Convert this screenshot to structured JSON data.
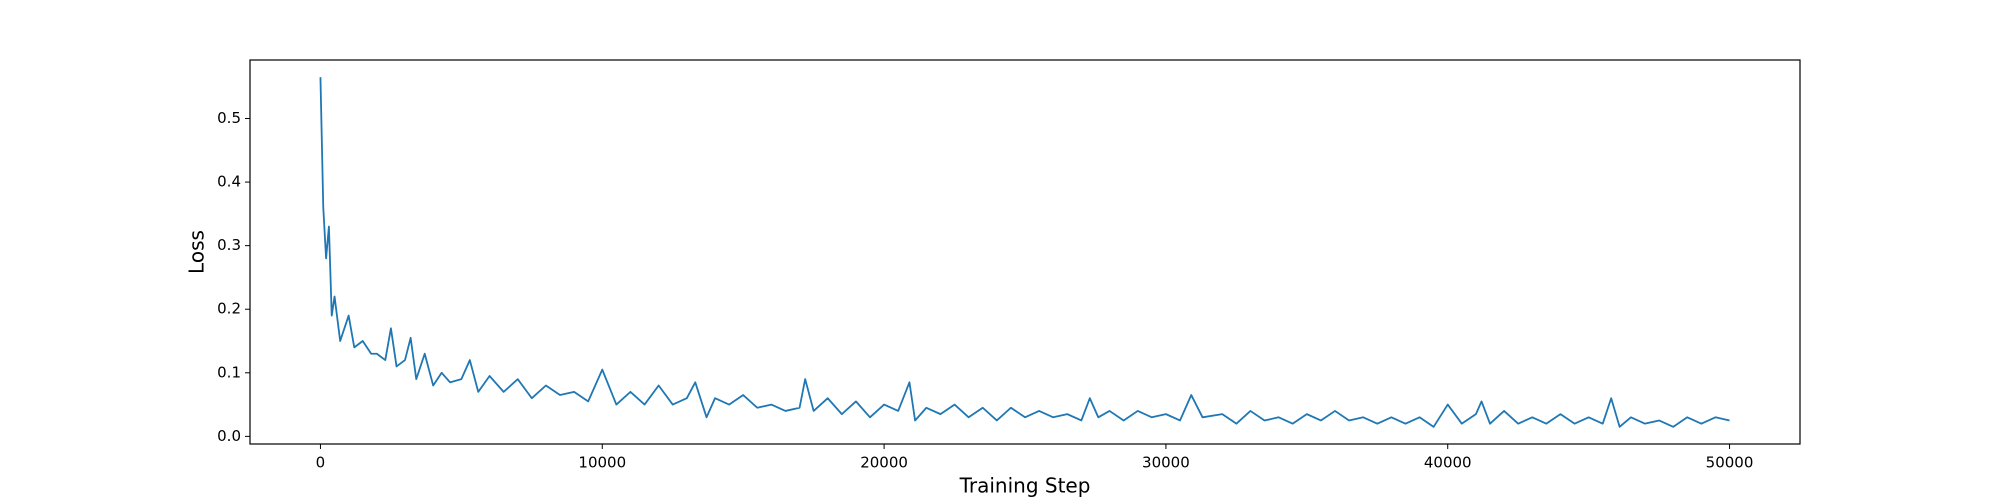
{
  "chart_data": {
    "type": "line",
    "x_label": "Training Step",
    "y_label": "Loss",
    "x": [
      0,
      100,
      200,
      300,
      400,
      500,
      700,
      1000,
      1200,
      1500,
      1800,
      2000,
      2300,
      2500,
      2700,
      3000,
      3200,
      3400,
      3700,
      4000,
      4300,
      4600,
      5000,
      5300,
      5600,
      6000,
      6500,
      7000,
      7500,
      8000,
      8500,
      9000,
      9500,
      10000,
      10500,
      11000,
      11500,
      12000,
      12500,
      13000,
      13300,
      13700,
      14000,
      14500,
      15000,
      15500,
      16000,
      16500,
      17000,
      17200,
      17500,
      18000,
      18500,
      19000,
      19500,
      20000,
      20500,
      20900,
      21100,
      21500,
      22000,
      22500,
      23000,
      23500,
      24000,
      24500,
      25000,
      25500,
      26000,
      26500,
      27000,
      27300,
      27600,
      28000,
      28500,
      29000,
      29500,
      30000,
      30500,
      30900,
      31300,
      32000,
      32500,
      33000,
      33500,
      34000,
      34500,
      35000,
      35500,
      36000,
      36500,
      37000,
      37500,
      38000,
      38500,
      39000,
      39500,
      40000,
      40500,
      41000,
      41200,
      41500,
      42000,
      42500,
      43000,
      43500,
      44000,
      44500,
      45000,
      45500,
      45800,
      46100,
      46500,
      47000,
      47500,
      48000,
      48500,
      49000,
      49500,
      50000
    ],
    "series": [
      {
        "color": "#1f77b4",
        "values": [
          0.565,
          0.36,
          0.28,
          0.33,
          0.19,
          0.22,
          0.15,
          0.19,
          0.14,
          0.15,
          0.13,
          0.13,
          0.12,
          0.17,
          0.11,
          0.12,
          0.155,
          0.09,
          0.13,
          0.08,
          0.1,
          0.085,
          0.09,
          0.12,
          0.07,
          0.095,
          0.07,
          0.09,
          0.06,
          0.08,
          0.065,
          0.07,
          0.055,
          0.105,
          0.05,
          0.07,
          0.05,
          0.08,
          0.05,
          0.06,
          0.085,
          0.03,
          0.06,
          0.05,
          0.065,
          0.045,
          0.05,
          0.04,
          0.045,
          0.09,
          0.04,
          0.06,
          0.035,
          0.055,
          0.03,
          0.05,
          0.04,
          0.085,
          0.025,
          0.045,
          0.035,
          0.05,
          0.03,
          0.045,
          0.025,
          0.045,
          0.03,
          0.04,
          0.03,
          0.035,
          0.025,
          0.06,
          0.03,
          0.04,
          0.025,
          0.04,
          0.03,
          0.035,
          0.025,
          0.065,
          0.03,
          0.035,
          0.02,
          0.04,
          0.025,
          0.03,
          0.02,
          0.035,
          0.025,
          0.04,
          0.025,
          0.03,
          0.02,
          0.03,
          0.02,
          0.03,
          0.015,
          0.05,
          0.02,
          0.035,
          0.055,
          0.02,
          0.04,
          0.02,
          0.03,
          0.02,
          0.035,
          0.02,
          0.03,
          0.02,
          0.06,
          0.015,
          0.03,
          0.02,
          0.025,
          0.015,
          0.03,
          0.02,
          0.03,
          0.025
        ]
      }
    ],
    "xlim": [
      -2500,
      52500
    ],
    "xticks": [
      0,
      10000,
      20000,
      30000,
      40000,
      50000
    ],
    "ylim": [
      -0.012,
      0.592
    ],
    "yticks": [
      {
        "value": 0,
        "label": "0.0"
      },
      0.1,
      0.2,
      0.3,
      0.4,
      0.5
    ]
  }
}
